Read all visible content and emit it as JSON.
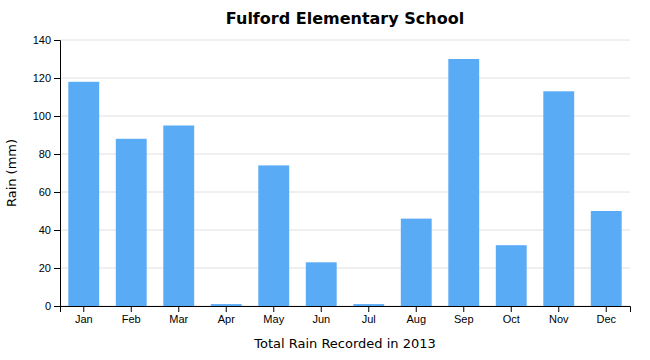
{
  "chart_data": {
    "type": "bar",
    "title": "Fulford Elementary School",
    "xlabel": "Total Rain Recorded in 2013",
    "ylabel": "Rain (mm)",
    "categories": [
      "Jan",
      "Feb",
      "Mar",
      "Apr",
      "May",
      "Jun",
      "Jul",
      "Aug",
      "Sep",
      "Oct",
      "Nov",
      "Dec"
    ],
    "values": [
      118,
      88,
      95,
      1,
      74,
      23,
      1,
      46,
      130,
      32,
      113,
      50
    ],
    "color": "#5aabf5",
    "ylim": [
      0,
      140
    ],
    "yticks": [
      0,
      20,
      40,
      60,
      80,
      100,
      120,
      140
    ],
    "grid": true
  }
}
